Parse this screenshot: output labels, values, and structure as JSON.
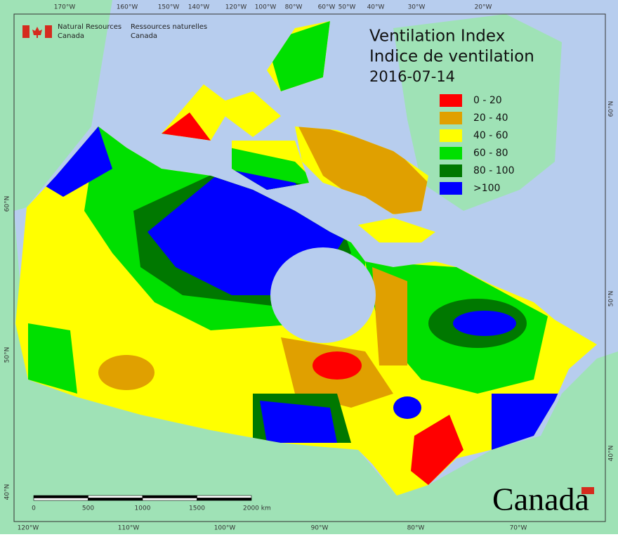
{
  "header": {
    "agency_en": [
      "Natural Resources",
      "Canada"
    ],
    "agency_fr": [
      "Ressources naturelles",
      "Canada"
    ]
  },
  "map": {
    "title": [
      "Ventilation Index",
      "Indice de ventilation",
      "2016-07-14"
    ],
    "legend": [
      {
        "label": "0 - 20",
        "color": "#ff0000"
      },
      {
        "label": "20 - 40",
        "color": "#e0a000"
      },
      {
        "label": "40 - 60",
        "color": "#ffff00"
      },
      {
        "label": "60 - 80",
        "color": "#00e000"
      },
      {
        "label": "80 - 100",
        "color": "#007800"
      },
      {
        "label": ">100",
        "color": "#0000ff"
      }
    ],
    "graticule_top": [
      "170°W",
      "160°W",
      "150°W",
      "140°W",
      "120°W",
      "100°W",
      "80°W",
      "60°W",
      "50°W",
      "40°W",
      "30°W",
      "20°W"
    ],
    "graticule_bottom": [
      "120°W",
      "110°W",
      "100°W",
      "90°W",
      "80°W",
      "70°W"
    ],
    "graticule_left": [
      "60°N",
      "50°N",
      "40°N"
    ],
    "graticule_right": [
      "60°N",
      "50°N",
      "40°N"
    ],
    "scale_labels": [
      "0",
      "500",
      "1000",
      "1500",
      "2000 km"
    ]
  },
  "footer": {
    "wordmark": "Canada"
  }
}
